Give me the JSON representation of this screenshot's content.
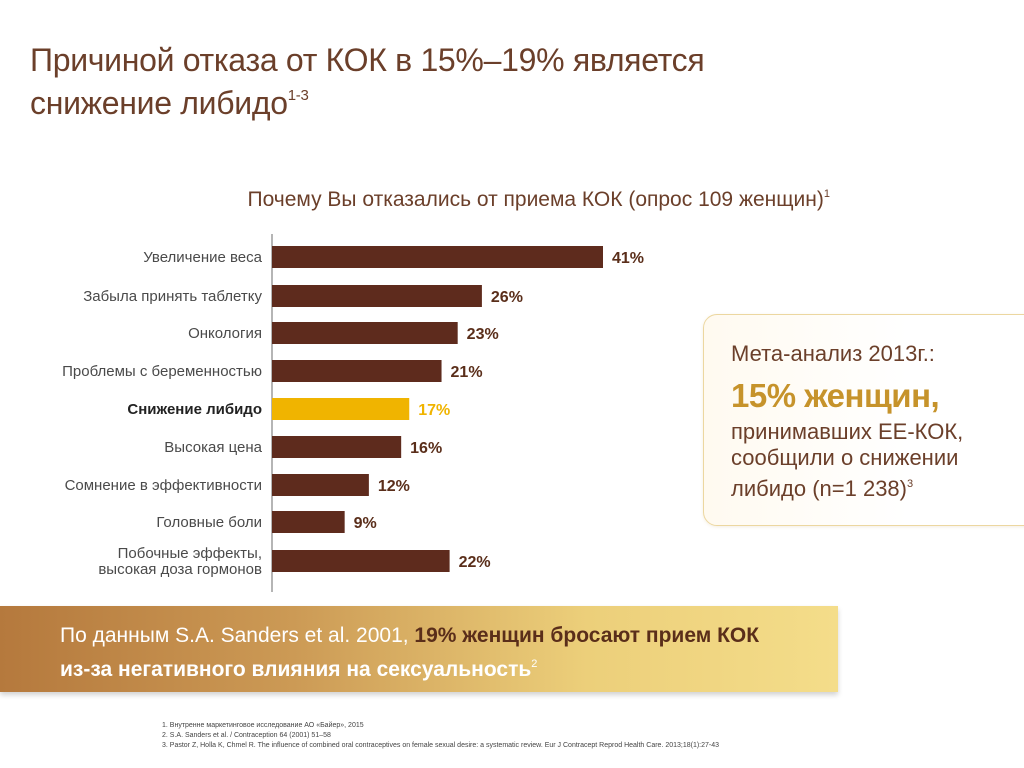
{
  "slide": {
    "title_line1": "Причиной отказа от КОК в 15%–19% является",
    "title_line2": "снижение либидо",
    "title_sup": "1-3"
  },
  "chart_data": {
    "type": "bar",
    "orientation": "horizontal",
    "title": "Почему Вы отказались от приема КОК (опрос 109 женщин)",
    "title_sup": "1",
    "categories": [
      [
        "Увеличение веса"
      ],
      [
        "Забыла принять таблетку"
      ],
      [
        "Онкология"
      ],
      [
        "Проблемы с беременностью"
      ],
      [
        "Снижение либидо"
      ],
      [
        "Высокая цена"
      ],
      [
        "Сомнение в эффективности"
      ],
      [
        "Головные боли"
      ],
      [
        "Побочные эффекты,",
        "высокая доза гормонов"
      ]
    ],
    "values": [
      41,
      26,
      23,
      21,
      17,
      16,
      12,
      9,
      22
    ],
    "value_labels": [
      "41%",
      "26%",
      "23%",
      "21%",
      "17%",
      "16%",
      "12%",
      "9%",
      "22%"
    ],
    "highlight_index": 4,
    "bar_color": "#5e2b1d",
    "highlight_color": "#f0b400",
    "xlim": [
      0,
      41
    ]
  },
  "meta_box": {
    "heading": "Мета-анализ 2013г.:",
    "big": "15% женщин,",
    "line1": "принимавших ЕЕ-КОК,",
    "line2": "сообщили о снижении",
    "line3": "либидо (n=1 238)",
    "sup": "3"
  },
  "banner": {
    "part1": "По данным S.A. Sanders et al. 2001, ",
    "part2": "19% женщин бросают прием КОК",
    "part3": "из-за негативного влияния на сексуальность",
    "sup": "2"
  },
  "references": [
    "1. Внутренне маркетинговое исследование АО «Байер», 2015",
    "2. S.A. Sanders et al. / Contraception 64 (2001) 51–58",
    "3. Pastor Z, Holla K, Chmel R. The influence of combined oral contraceptives on female sexual desire: a systematic review. Eur J Contracept Reprod Health Care. 2013;18(1):27-43"
  ]
}
